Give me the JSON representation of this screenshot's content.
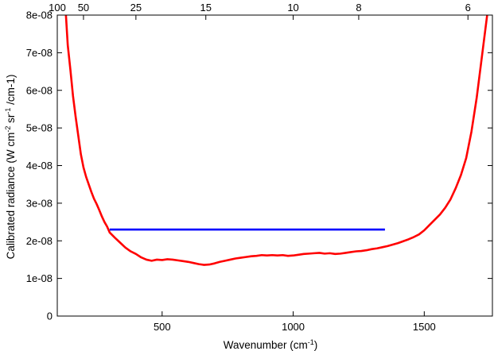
{
  "chart_data": {
    "type": "line",
    "title": "",
    "xlabel": {
      "main": "Wavenumber (cm",
      "sup": "-1",
      "tail": ")"
    },
    "ylabel": {
      "p1": "Calibrated radiance (W cm",
      "s1": "-2",
      "p2": " sr",
      "s2": "-1",
      "p3": " /cm-1)"
    },
    "xlim": [
      100,
      1760
    ],
    "ylim": [
      0,
      8e-08
    ],
    "x_ticks": [
      {
        "value": 500,
        "label": "500"
      },
      {
        "value": 1000,
        "label": "1000"
      },
      {
        "value": 1500,
        "label": "1500"
      }
    ],
    "y_ticks": [
      {
        "value": 0,
        "label": "0"
      },
      {
        "value": 1e-08,
        "label": "1e-08"
      },
      {
        "value": 2e-08,
        "label": "2e-08"
      },
      {
        "value": 3e-08,
        "label": "3e-08"
      },
      {
        "value": 4e-08,
        "label": "4e-08"
      },
      {
        "value": 5e-08,
        "label": "5e-08"
      },
      {
        "value": 6e-08,
        "label": "6e-08"
      },
      {
        "value": 7e-08,
        "label": "7e-08"
      },
      {
        "value": 8e-08,
        "label": "8e-08"
      }
    ],
    "top_ticks": [
      {
        "value": 100,
        "label": "100"
      },
      {
        "value": 200,
        "label": "50"
      },
      {
        "value": 400,
        "label": "25"
      },
      {
        "value": 666.7,
        "label": "15"
      },
      {
        "value": 1000,
        "label": "10"
      },
      {
        "value": 1250,
        "label": "8"
      },
      {
        "value": 1666.7,
        "label": "6"
      }
    ],
    "grid": false,
    "legend": "none",
    "series": [
      {
        "color": "#ff0000",
        "x": [
          133,
          140,
          150,
          160,
          170,
          180,
          190,
          200,
          210,
          220,
          230,
          240,
          250,
          260,
          270,
          280,
          290,
          300,
          320,
          340,
          360,
          380,
          400,
          420,
          440,
          460,
          480,
          500,
          520,
          540,
          560,
          580,
          600,
          620,
          640,
          660,
          680,
          700,
          720,
          740,
          760,
          780,
          800,
          820,
          840,
          860,
          880,
          900,
          920,
          940,
          960,
          980,
          1000,
          1020,
          1040,
          1060,
          1080,
          1100,
          1120,
          1140,
          1160,
          1180,
          1200,
          1220,
          1240,
          1260,
          1280,
          1300,
          1320,
          1340,
          1360,
          1380,
          1400,
          1420,
          1440,
          1460,
          1480,
          1500,
          1520,
          1540,
          1560,
          1580,
          1600,
          1620,
          1640,
          1660,
          1680,
          1700,
          1720,
          1740
        ],
        "y": [
          8e-08,
          7.2e-08,
          6.55e-08,
          5.85e-08,
          5.3e-08,
          4.8e-08,
          4.3e-08,
          3.95e-08,
          3.7e-08,
          3.5e-08,
          3.3e-08,
          3.12e-08,
          2.98e-08,
          2.82e-08,
          2.65e-08,
          2.5e-08,
          2.38e-08,
          2.22e-08,
          2.08e-08,
          1.95e-08,
          1.82e-08,
          1.72e-08,
          1.65e-08,
          1.56e-08,
          1.5e-08,
          1.47e-08,
          1.5e-08,
          1.49e-08,
          1.51e-08,
          1.5e-08,
          1.48e-08,
          1.46e-08,
          1.44e-08,
          1.41e-08,
          1.38e-08,
          1.36e-08,
          1.37e-08,
          1.4e-08,
          1.44e-08,
          1.47e-08,
          1.5e-08,
          1.53e-08,
          1.55e-08,
          1.57e-08,
          1.59e-08,
          1.6e-08,
          1.62e-08,
          1.61e-08,
          1.62e-08,
          1.61e-08,
          1.62e-08,
          1.6e-08,
          1.61e-08,
          1.63e-08,
          1.65e-08,
          1.66e-08,
          1.67e-08,
          1.68e-08,
          1.66e-08,
          1.67e-08,
          1.65e-08,
          1.66e-08,
          1.68e-08,
          1.7e-08,
          1.72e-08,
          1.73e-08,
          1.75e-08,
          1.78e-08,
          1.8e-08,
          1.83e-08,
          1.86e-08,
          1.9e-08,
          1.94e-08,
          1.99e-08,
          2.04e-08,
          2.1e-08,
          2.17e-08,
          2.28e-08,
          2.42e-08,
          2.56e-08,
          2.7e-08,
          2.88e-08,
          3.1e-08,
          3.4e-08,
          3.75e-08,
          4.2e-08,
          4.9e-08,
          5.8e-08,
          6.9e-08,
          8e-08
        ]
      },
      {
        "color": "#0000ff",
        "x": [
          300,
          1350
        ],
        "y": [
          2.3e-08,
          2.3e-08
        ]
      }
    ]
  }
}
